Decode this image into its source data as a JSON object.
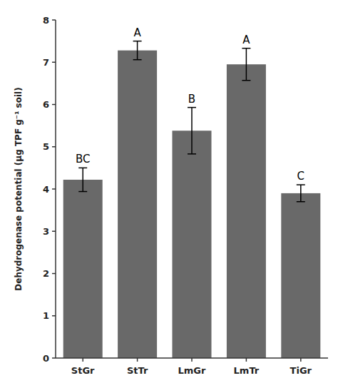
{
  "chart_data": {
    "type": "bar",
    "categories": [
      "StGr",
      "StTr",
      "LmGr",
      "LmTr",
      "TiGr"
    ],
    "values": [
      4.22,
      7.28,
      5.38,
      6.95,
      3.9
    ],
    "errors": [
      0.28,
      0.22,
      0.55,
      0.38,
      0.2
    ],
    "annotations": [
      "BC",
      "A",
      "B",
      "A",
      "C"
    ],
    "color": "#696969",
    "ylabel": "Dehydrogenase potential (µg TPF g⁻¹ soil)",
    "ylim": [
      0,
      8
    ],
    "yticks": [
      0,
      1,
      2,
      3,
      4,
      5,
      6,
      7,
      8
    ],
    "grid": false
  }
}
